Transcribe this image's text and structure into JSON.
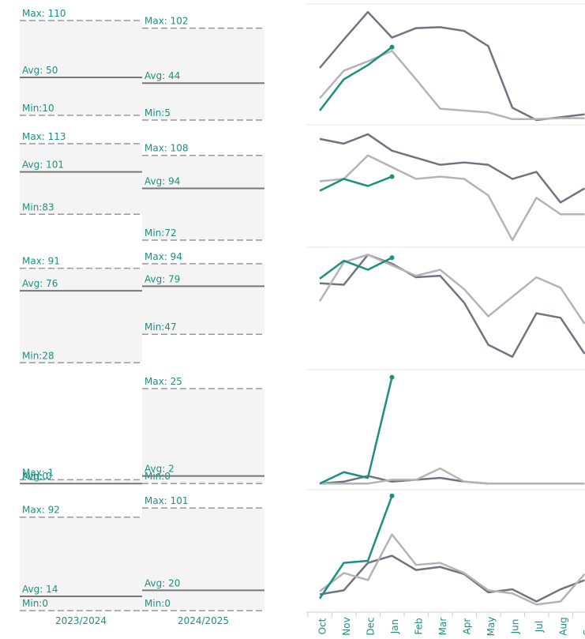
{
  "column_labels": [
    "2023/2024",
    "2024/2025"
  ],
  "months": [
    "Oct",
    "Nov",
    "Dec",
    "Jan",
    "Feb",
    "Mar",
    "Apr",
    "May",
    "Jun",
    "Jul",
    "Aug",
    "Sep"
  ],
  "rows": [
    {
      "ylim": [
        2.5,
        127.5
      ],
      "stats": [
        {
          "max": {
            "value": 110,
            "label": "Max: 110"
          },
          "avg": {
            "value": 50,
            "label": "Avg: 50"
          },
          "min": {
            "value": 10,
            "label": "Min:10"
          }
        },
        {
          "max": {
            "value": 102,
            "label": "Max: 102"
          },
          "avg": {
            "value": 44,
            "label": "Avg: 44"
          },
          "min": {
            "value": 5,
            "label": "Min:5"
          }
        }
      ],
      "series": [
        {
          "color": "#6e7480",
          "values": [
            60,
            90,
            119,
            92,
            102,
            103,
            99,
            83,
            18,
            5,
            8,
            11
          ]
        },
        {
          "color": "#b4b4b4",
          "values": [
            28,
            57,
            67,
            78,
            48,
            17,
            15,
            13,
            6,
            6,
            7,
            7
          ]
        },
        {
          "color": "#1a9080",
          "values": [
            15,
            48,
            63,
            82,
            null,
            null,
            null,
            null,
            null,
            null,
            null,
            null
          ]
        }
      ]
    },
    {
      "ylim": [
        70,
        121
      ],
      "stats": [
        {
          "max": {
            "value": 113,
            "label": "Max: 113"
          },
          "avg": {
            "value": 101,
            "label": "Avg: 101"
          },
          "min": {
            "value": 83,
            "label": "Min:83"
          }
        },
        {
          "max": {
            "value": 108,
            "label": "Max: 108"
          },
          "avg": {
            "value": 94,
            "label": "Avg: 94"
          },
          "min": {
            "value": 72,
            "label": "Min:72"
          }
        }
      ],
      "series": [
        {
          "color": "#6e7480",
          "values": [
            115,
            113,
            117,
            110,
            107,
            104,
            105,
            104,
            98,
            101,
            88,
            94
          ]
        },
        {
          "color": "#b4b4b4",
          "values": [
            97,
            98,
            108,
            103,
            98,
            99,
            98,
            91,
            72,
            90,
            83,
            83
          ]
        },
        {
          "color": "#1a9080",
          "values": [
            93,
            98,
            95,
            99,
            null,
            null,
            null,
            null,
            null,
            null,
            null,
            null
          ]
        }
      ]
    },
    {
      "ylim": [
        25,
        105
      ],
      "stats": [
        {
          "max": {
            "value": 91,
            "label": "Max: 91"
          },
          "avg": {
            "value": 76,
            "label": "Avg: 76"
          },
          "min": {
            "value": 28,
            "label": "Min:28"
          }
        },
        {
          "max": {
            "value": 94,
            "label": "Max: 94"
          },
          "avg": {
            "value": 79,
            "label": "Avg: 79"
          },
          "min": {
            "value": 47,
            "label": "Min:47"
          }
        }
      ],
      "series": [
        {
          "color": "#6e7480",
          "values": [
            81,
            80,
            100,
            94,
            85,
            86,
            68,
            40,
            32,
            61,
            58,
            34
          ]
        },
        {
          "color": "#b4b4b4",
          "values": [
            69,
            95,
            100,
            93,
            86,
            90,
            77,
            59,
            72,
            85,
            78,
            54
          ]
        },
        {
          "color": "#1a9080",
          "values": [
            84,
            96,
            90,
            98,
            null,
            null,
            null,
            null,
            null,
            null,
            null,
            null
          ]
        }
      ]
    },
    {
      "ylim": [
        -1,
        30
      ],
      "stats": [
        {
          "max": {
            "value": 1,
            "label": "Max: 1"
          },
          "avg": {
            "value": 0,
            "label": "Avg: 0"
          },
          "min": {
            "value": 0,
            "label": "Min:0"
          }
        },
        {
          "max": {
            "value": 25,
            "label": "Max: 25"
          },
          "avg": {
            "value": 2,
            "label": "Avg: 2"
          },
          "min": {
            "value": 0,
            "label": "Min:0"
          }
        }
      ],
      "series": [
        {
          "color": "#6e7480",
          "values": [
            0,
            0.5,
            2,
            0.5,
            1,
            1.5,
            0.5,
            0,
            0,
            0,
            0,
            0
          ]
        },
        {
          "color": "#b4b4b4",
          "values": [
            0,
            0,
            0,
            1,
            1,
            4,
            0.5,
            0,
            0,
            0,
            0,
            0
          ]
        },
        {
          "color": "#1a9080",
          "values": [
            0,
            3,
            1.5,
            28,
            null,
            null,
            null,
            null,
            null,
            null,
            null,
            null
          ]
        }
      ]
    },
    {
      "ylim": [
        -1.5,
        119
      ],
      "stats": [
        {
          "max": {
            "value": 92,
            "label": "Max: 92"
          },
          "avg": {
            "value": 14,
            "label": "Avg: 14"
          },
          "min": {
            "value": 0,
            "label": "Min:0"
          }
        },
        {
          "max": {
            "value": 101,
            "label": "Max: 101"
          },
          "avg": {
            "value": 20,
            "label": "Avg: 20"
          },
          "min": {
            "value": 0,
            "label": "Min:0"
          }
        }
      ],
      "series": [
        {
          "color": "#6e7480",
          "values": [
            16,
            20,
            47,
            54,
            40,
            43,
            36,
            18,
            21,
            9,
            21,
            30
          ]
        },
        {
          "color": "#b4b4b4",
          "values": [
            19,
            37,
            30,
            75,
            45,
            47,
            37,
            20,
            17,
            6,
            9,
            36
          ]
        },
        {
          "color": "#1a9080",
          "values": [
            12,
            47,
            49,
            113,
            null,
            null,
            null,
            null,
            null,
            null,
            null,
            null
          ]
        }
      ]
    }
  ]
}
